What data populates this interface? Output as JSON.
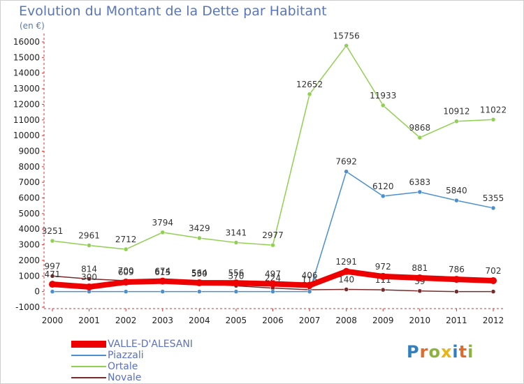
{
  "header": {
    "title": "Evolution du Montant de la Dette par Habitant",
    "subtitle": "(en €)"
  },
  "logo": {
    "text": "Proxiti",
    "letters": [
      "P",
      "r",
      "o",
      "x",
      "i",
      "t",
      "i"
    ],
    "colors": [
      "#2f7fc1",
      "#e26b2a",
      "#8db33a",
      "#e8b514",
      "#2f7fc1",
      "#e26b2a",
      "#8db33a"
    ]
  },
  "chart_data": {
    "type": "line",
    "title": "Evolution du Montant de la Dette par Habitant",
    "subtitle": "(en €)",
    "xlabel": "",
    "ylabel": "",
    "x": [
      "2000",
      "2001",
      "2002",
      "2003",
      "2004",
      "2005",
      "2006",
      "2007",
      "2008",
      "2009",
      "2010",
      "2011",
      "2012"
    ],
    "ylim": [
      -1000,
      16000
    ],
    "yticks": [
      -1000,
      0,
      1000,
      2000,
      3000,
      4000,
      5000,
      6000,
      7000,
      8000,
      9000,
      10000,
      11000,
      12000,
      13000,
      14000,
      15000,
      16000
    ],
    "grid": false,
    "legend_position": "bottom-left",
    "series": [
      {
        "name": "Novale",
        "color": "#7a2a2a",
        "values": [
          997,
          814,
          700,
          615,
          530,
          370,
          224,
          116,
          140,
          111,
          39,
          0,
          0
        ],
        "labels": [
          "997",
          "814",
          "700",
          "615",
          "530",
          "370",
          "224",
          "116",
          "140",
          "111",
          "39",
          "",
          ""
        ]
      },
      {
        "name": "Piazzali",
        "color": "#4a90d0",
        "values": [
          0,
          0,
          0,
          0,
          0,
          0,
          0,
          0,
          7692,
          6120,
          6383,
          5840,
          5355
        ],
        "labels": [
          "",
          "",
          "",
          "",
          "",
          "",
          "",
          "",
          "7692",
          "6120",
          "6383",
          "5840",
          "5355"
        ]
      },
      {
        "name": "Ortale",
        "color": "#90d050",
        "values": [
          3251,
          2961,
          2712,
          3794,
          3429,
          3141,
          2977,
          12652,
          15756,
          11933,
          9868,
          10912,
          11022
        ],
        "labels": [
          "3251",
          "2961",
          "2712",
          "3794",
          "3429",
          "3141",
          "2977",
          "12652",
          "15756",
          "11933",
          "9868",
          "10912",
          "11022"
        ]
      },
      {
        "name": "VALLE-D'ALESANI",
        "color": "#ee0000",
        "thick": true,
        "values": [
          471,
          300,
          609,
          674,
          564,
          556,
          497,
          406,
          1291,
          972,
          881,
          786,
          702
        ],
        "labels": [
          "471",
          "300",
          "609",
          "674",
          "564",
          "556",
          "497",
          "406",
          "1291",
          "972",
          "881",
          "786",
          "702"
        ]
      }
    ],
    "legend_order": [
      "VALLE-D'ALESANI",
      "Piazzali",
      "Ortale",
      "Novale"
    ]
  }
}
